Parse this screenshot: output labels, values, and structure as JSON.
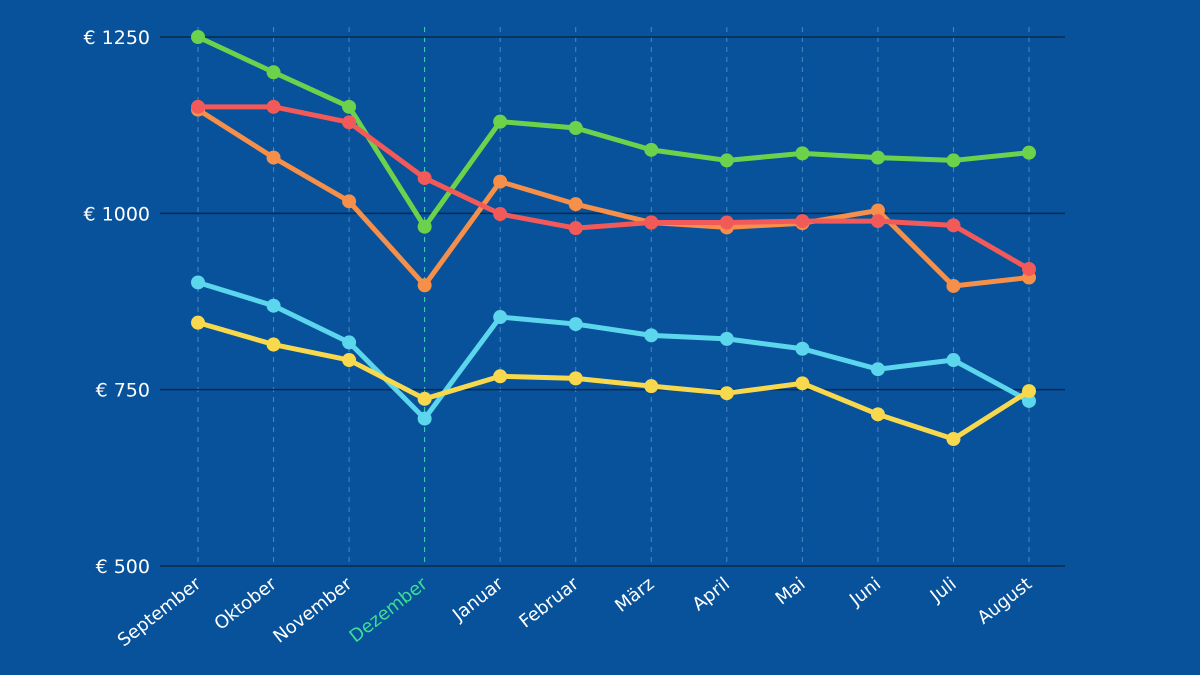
{
  "chart_data": {
    "type": "line",
    "title": "",
    "xlabel": "",
    "ylabel": "",
    "ylim": [
      500,
      1250
    ],
    "grid": true,
    "categories": [
      "September",
      "Oktober",
      "November",
      "Dezember",
      "Januar",
      "Februar",
      "März",
      "April",
      "Mai",
      "Juni",
      "Juli",
      "August"
    ],
    "highlighted_category": "Dezember",
    "y_ticks": [
      {
        "value": 1250,
        "label": "€ 1250"
      },
      {
        "value": 1000,
        "label": "€ 1000"
      },
      {
        "value": 750,
        "label": "€ 750"
      },
      {
        "value": 500,
        "label": "€ 500"
      }
    ],
    "series": [
      {
        "name": "green",
        "color": "#6cd24b",
        "values": [
          1250,
          1200,
          1151,
          981,
          1130,
          1121,
          1090,
          1075,
          1085,
          1079,
          1075,
          1086
        ]
      },
      {
        "name": "orange",
        "color": "#f58f4a",
        "values": [
          1147,
          1079,
          1017,
          898,
          1045,
          1013,
          987,
          980,
          986,
          1004,
          897,
          909
        ]
      },
      {
        "name": "red",
        "color": "#f25a5a",
        "values": [
          1151,
          1151,
          1129,
          1050,
          999,
          979,
          987,
          987,
          989,
          989,
          983,
          921
        ]
      },
      {
        "name": "cyan",
        "color": "#5bd6ec",
        "values": [
          902,
          869,
          817,
          709,
          853,
          843,
          827,
          822,
          808,
          779,
          792,
          734
        ]
      },
      {
        "name": "yellow",
        "color": "#f8d84c",
        "values": [
          845,
          814,
          792,
          737,
          769,
          766,
          755,
          745,
          759,
          715,
          680,
          748
        ]
      }
    ],
    "colors": {
      "background": "#07529a",
      "highlight_label": "#3ddc97",
      "gridline": "#0b2a4a"
    }
  }
}
